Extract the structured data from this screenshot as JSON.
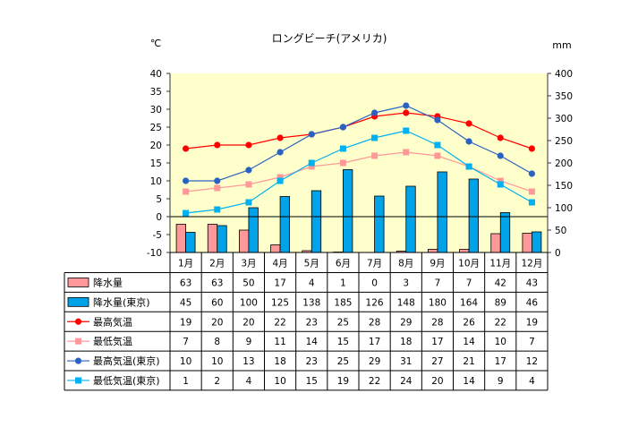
{
  "chart_data": {
    "type": "bar",
    "title": "ロングビーチ(アメリカ)",
    "y_left_label": "℃",
    "y_right_label": "mm",
    "y_left_range": [
      -10,
      40
    ],
    "y_left_ticks": [
      40,
      35,
      30,
      25,
      20,
      15,
      10,
      5,
      0,
      -5,
      -10
    ],
    "y_right_range": [
      0,
      400
    ],
    "y_right_ticks": [
      400,
      350,
      300,
      250,
      200,
      150,
      100,
      50,
      0
    ],
    "x_axis_crosses_at": 0,
    "grid": false,
    "legend": "data-table",
    "plot_background": "#ffffcc",
    "categories": [
      "1月",
      "2月",
      "3月",
      "4月",
      "5月",
      "6月",
      "7月",
      "8月",
      "9月",
      "10月",
      "11月",
      "12月"
    ],
    "series": [
      {
        "name": "降水量",
        "type": "bar",
        "axis": "right",
        "color": "#ff9999",
        "values": [
          63,
          63,
          50,
          17,
          4,
          1,
          0,
          3,
          7,
          7,
          42,
          43
        ]
      },
      {
        "name": "降水量(東京)",
        "type": "bar",
        "axis": "right",
        "color": "#00a2e8",
        "values": [
          45,
          60,
          100,
          125,
          138,
          185,
          126,
          148,
          180,
          164,
          89,
          46
        ]
      },
      {
        "name": "最高気温",
        "type": "line",
        "axis": "left",
        "color": "#ff0000",
        "marker": "circle",
        "values": [
          19,
          20,
          20,
          22,
          23,
          25,
          28,
          29,
          28,
          26,
          22,
          19
        ]
      },
      {
        "name": "最低気温",
        "type": "line",
        "axis": "left",
        "color": "#ff9999",
        "marker": "square",
        "values": [
          7,
          8,
          9,
          11,
          14,
          15,
          17,
          18,
          17,
          14,
          10,
          7
        ]
      },
      {
        "name": "最高気温(東京)",
        "type": "line",
        "axis": "left",
        "color": "#2a62c2",
        "marker": "circle",
        "values": [
          10,
          10,
          13,
          18,
          23,
          25,
          29,
          31,
          27,
          21,
          17,
          12
        ]
      },
      {
        "name": "最低気温(東京)",
        "type": "line",
        "axis": "left",
        "color": "#00b0f0",
        "marker": "square",
        "values": [
          1,
          2,
          4,
          10,
          15,
          19,
          22,
          24,
          20,
          14,
          9,
          4
        ]
      }
    ]
  }
}
